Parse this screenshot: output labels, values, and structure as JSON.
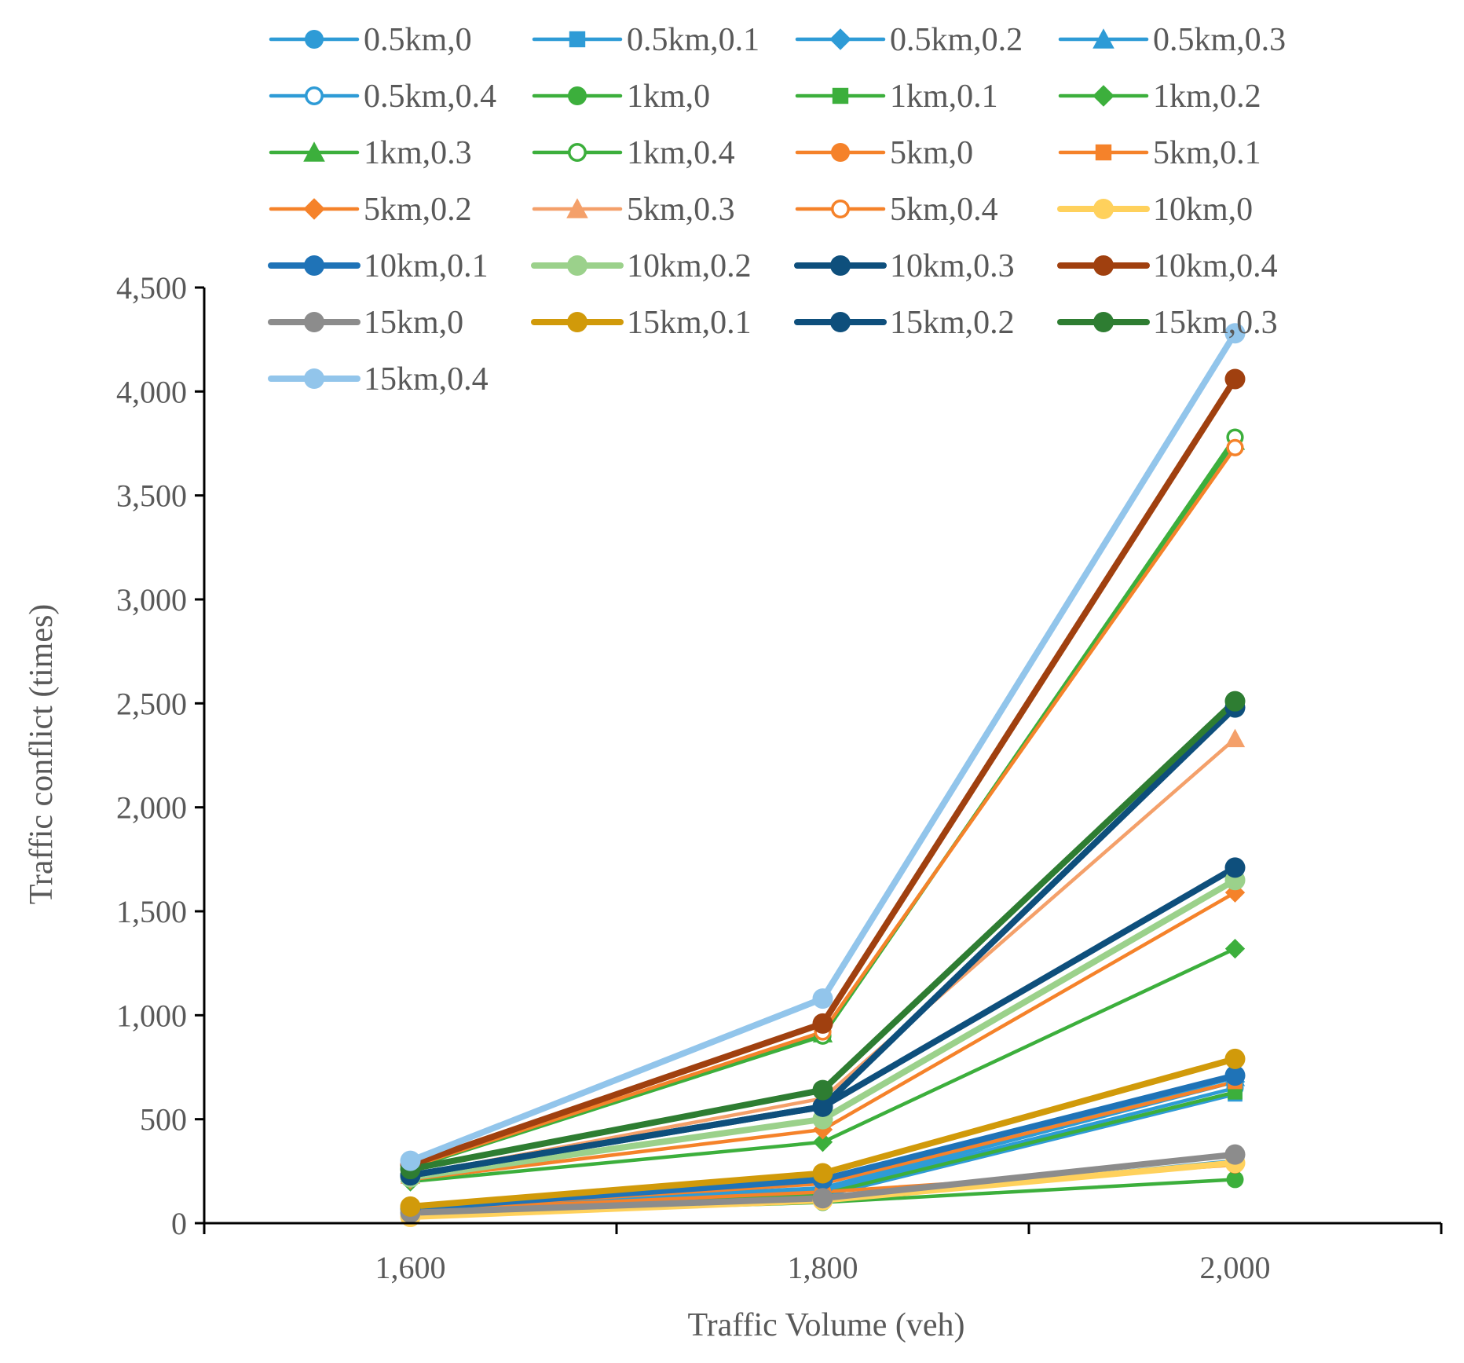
{
  "chart_data": {
    "type": "line",
    "title": "",
    "xlabel": "Traffic Volume (veh)",
    "ylabel": "Traffic conflict (times)",
    "x": [
      1600,
      1800,
      2000
    ],
    "xlim": [
      1500,
      2100
    ],
    "ylim": [
      0,
      4500
    ],
    "x_ticks": [
      1600,
      1800,
      2000
    ],
    "x_tick_labels": [
      "1,600",
      "1,800",
      "2,000"
    ],
    "y_ticks": [
      0,
      500,
      1000,
      1500,
      2000,
      2500,
      3000,
      3500,
      4000,
      4500
    ],
    "y_tick_labels": [
      "0",
      "500",
      "1,000",
      "1,500",
      "2,000",
      "2,500",
      "3,000",
      "3,500",
      "4,000",
      "4,500"
    ],
    "grid": false,
    "legend_position": "top",
    "series": [
      {
        "name": "0.5km,0",
        "values": [
          60,
          150,
          650
        ],
        "color": "#2E9BD6",
        "marker": "circle",
        "width": "thin"
      },
      {
        "name": "0.5km,0.1",
        "values": [
          55,
          130,
          620
        ],
        "color": "#2E9BD6",
        "marker": "square",
        "width": "thin"
      },
      {
        "name": "0.5km,0.2",
        "values": [
          65,
          160,
          680
        ],
        "color": "#2E9BD6",
        "marker": "diamond",
        "width": "thin"
      },
      {
        "name": "0.5km,0.3",
        "values": [
          70,
          170,
          700
        ],
        "color": "#2E9BD6",
        "marker": "triangle",
        "width": "thin"
      },
      {
        "name": "0.5km,0.4",
        "values": [
          50,
          110,
          300
        ],
        "color": "#2E9BD6",
        "marker": "circle-open",
        "width": "thin"
      },
      {
        "name": "1km,0",
        "values": [
          40,
          100,
          210
        ],
        "color": "#3CAF3C",
        "marker": "circle",
        "width": "thin"
      },
      {
        "name": "1km,0.1",
        "values": [
          60,
          140,
          630
        ],
        "color": "#3CAF3C",
        "marker": "square",
        "width": "thin"
      },
      {
        "name": "1km,0.2",
        "values": [
          200,
          390,
          1320
        ],
        "color": "#3CAF3C",
        "marker": "diamond",
        "width": "thin"
      },
      {
        "name": "1km,0.3",
        "values": [
          270,
          910,
          3760
        ],
        "color": "#3CAF3C",
        "marker": "triangle",
        "width": "thin"
      },
      {
        "name": "1km,0.4",
        "values": [
          265,
          900,
          3780
        ],
        "color": "#3CAF3C",
        "marker": "circle-open",
        "width": "thin"
      },
      {
        "name": "5km,0",
        "values": [
          60,
          150,
          280
        ],
        "color": "#F5822A",
        "marker": "circle",
        "width": "thin"
      },
      {
        "name": "5km,0.1",
        "values": [
          65,
          190,
          680
        ],
        "color": "#F5822A",
        "marker": "square",
        "width": "thin"
      },
      {
        "name": "5km,0.2",
        "values": [
          210,
          450,
          1590
        ],
        "color": "#F5822A",
        "marker": "diamond",
        "width": "thin"
      },
      {
        "name": "5km,0.3",
        "values": [
          230,
          600,
          2330
        ],
        "color": "#F4A06A",
        "marker": "triangle",
        "width": "thin"
      },
      {
        "name": "5km,0.4",
        "values": [
          270,
          920,
          3730
        ],
        "color": "#F5822A",
        "marker": "circle-open",
        "width": "thin"
      },
      {
        "name": "10km,0",
        "values": [
          30,
          110,
          290
        ],
        "color": "#FFD15C",
        "marker": "circle",
        "width": "thick"
      },
      {
        "name": "10km,0.1",
        "values": [
          70,
          210,
          710
        ],
        "color": "#1F73B7",
        "marker": "circle",
        "width": "thick"
      },
      {
        "name": "10km,0.2",
        "values": [
          220,
          500,
          1650
        ],
        "color": "#9BD18B",
        "marker": "circle",
        "width": "thick"
      },
      {
        "name": "10km,0.3",
        "values": [
          230,
          560,
          1710
        ],
        "color": "#0E4F7C",
        "marker": "circle",
        "width": "thick"
      },
      {
        "name": "10km,0.4",
        "values": [
          280,
          960,
          4060
        ],
        "color": "#A0400F",
        "marker": "circle",
        "width": "thick"
      },
      {
        "name": "15km,0",
        "values": [
          50,
          120,
          330
        ],
        "color": "#8C8C8C",
        "marker": "circle",
        "width": "thick"
      },
      {
        "name": "15km,0.1",
        "values": [
          80,
          240,
          790
        ],
        "color": "#D19A0A",
        "marker": "circle",
        "width": "thick"
      },
      {
        "name": "15km,0.2",
        "values": [
          230,
          560,
          2480
        ],
        "color": "#0E4F7C",
        "marker": "circle",
        "width": "thick"
      },
      {
        "name": "15km,0.3",
        "values": [
          260,
          640,
          2510
        ],
        "color": "#2E7D32",
        "marker": "circle",
        "width": "thick"
      },
      {
        "name": "15km,0.4",
        "values": [
          300,
          1080,
          4280
        ],
        "color": "#92C5EB",
        "marker": "circle",
        "width": "thick"
      }
    ]
  }
}
